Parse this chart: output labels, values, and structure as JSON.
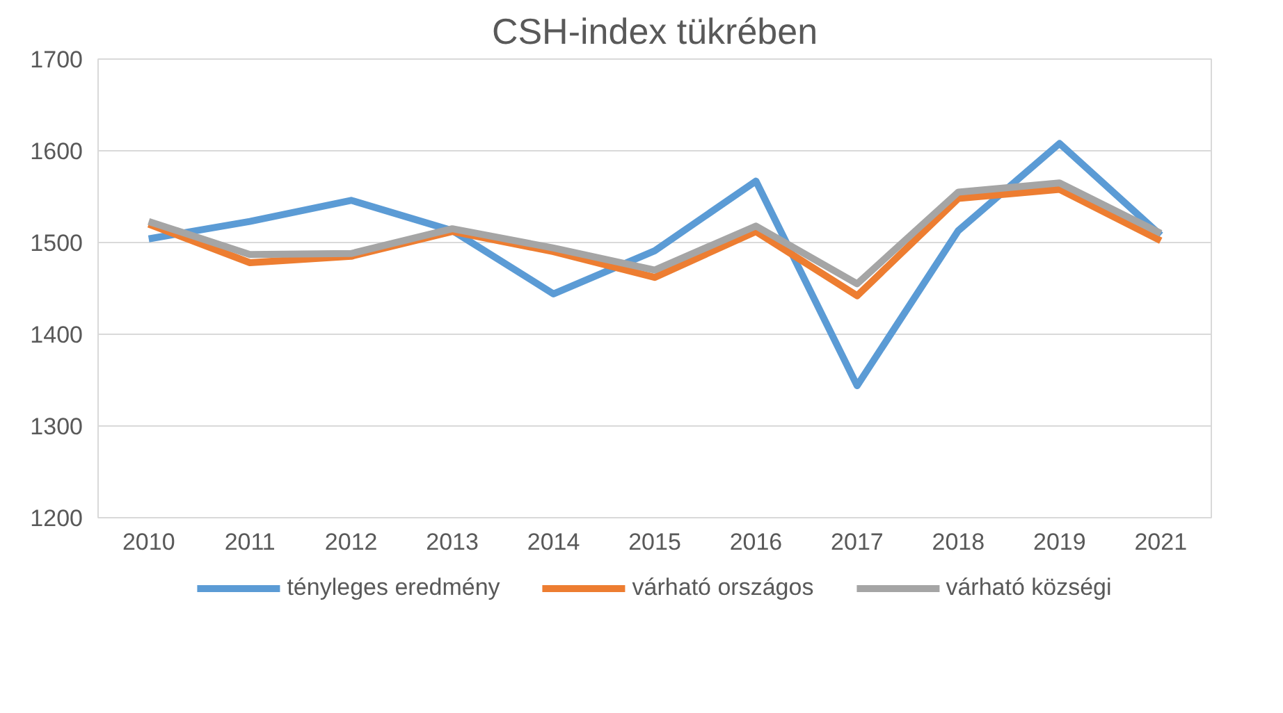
{
  "chart_data": {
    "type": "line",
    "title": "CSH-index tükrében",
    "categories": [
      "2010",
      "2011",
      "2012",
      "2013",
      "2014",
      "2015",
      "2016",
      "2017",
      "2018",
      "2019",
      "2021"
    ],
    "series": [
      {
        "name": "tényleges eredmény",
        "color": "#5b9bd5",
        "values": [
          1504,
          1523,
          1546,
          1513,
          1444,
          1491,
          1567,
          1344,
          1513,
          1608,
          1508
        ]
      },
      {
        "name": "várható országos",
        "color": "#ed7d31",
        "values": [
          1520,
          1478,
          1485,
          1512,
          1490,
          1462,
          1512,
          1442,
          1548,
          1558,
          1502
        ]
      },
      {
        "name": "várható községi",
        "color": "#a5a5a5",
        "values": [
          1523,
          1487,
          1488,
          1515,
          1494,
          1470,
          1518,
          1455,
          1555,
          1565,
          1510
        ]
      }
    ],
    "ylim": [
      1200,
      1700
    ],
    "yticks": [
      1200,
      1300,
      1400,
      1500,
      1600,
      1700
    ],
    "grid": "y",
    "legend": "bottom",
    "marker": "none",
    "line_style": "solid"
  }
}
